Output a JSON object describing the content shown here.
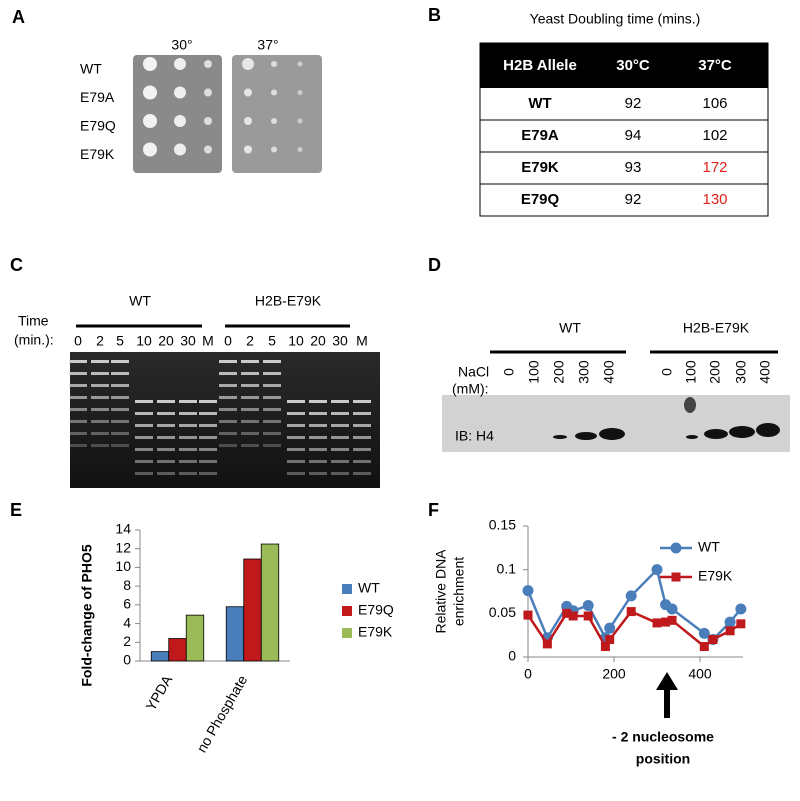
{
  "panels": {
    "A": {
      "label": "A",
      "temperatures": [
        "30°",
        "37°"
      ],
      "strains": [
        "WT",
        "E79A",
        "E79Q",
        "E79K"
      ]
    },
    "B": {
      "label": "B",
      "title": "Yeast Doubling time (mins.)",
      "header": [
        "H2B Allele",
        "30°C",
        "37°C"
      ],
      "rows": [
        [
          "WT",
          92,
          106
        ],
        [
          "E79A",
          94,
          102
        ],
        [
          "E79K",
          93,
          172
        ],
        [
          "E79Q",
          92,
          130
        ]
      ]
    },
    "C": {
      "label": "C",
      "time_label": [
        "Time",
        "(min.):"
      ],
      "groups": [
        "WT",
        "H2B-E79K"
      ],
      "lanes": [
        "0",
        "2",
        "5",
        "10",
        "20",
        "30",
        "M"
      ]
    },
    "D": {
      "label": "D",
      "groups": [
        "WT",
        "H2B-E79K"
      ],
      "salt_label": [
        "NaCl",
        "(mM):"
      ],
      "lanes": [
        "0",
        "100",
        "200",
        "300",
        "400"
      ],
      "blot_label": "IB: H4"
    },
    "E": {
      "label": "E"
    },
    "F": {
      "label": "F"
    }
  },
  "chart_data": [
    {
      "type": "bar",
      "y_label": "Fold-change of PHO5",
      "categories": [
        "YPDA",
        "no Phosphate"
      ],
      "series": [
        {
          "name": "WT",
          "color": "#4a7ebb",
          "values": [
            1,
            5.8
          ]
        },
        {
          "name": "E79Q",
          "color": "#c0191c",
          "values": [
            2.4,
            10.9
          ]
        },
        {
          "name": "E79K",
          "color": "#9bbb59",
          "values": [
            4.9,
            12.5
          ]
        }
      ],
      "ylim": [
        0,
        14
      ],
      "yticks": [
        0,
        2,
        4,
        6,
        8,
        10,
        12,
        14
      ],
      "legend": "right"
    },
    {
      "type": "line",
      "y_label": [
        "Relative DNA",
        "enrichment"
      ],
      "annotation": [
        "- 2 nucleosome",
        "position"
      ],
      "x": [
        0,
        45,
        90,
        105,
        140,
        180,
        190,
        240,
        300,
        320,
        335,
        410,
        430,
        470,
        495
      ],
      "series": [
        {
          "name": "WT",
          "color": "#4a7ebb",
          "marker": "circle",
          "values": [
            0.076,
            0.022,
            0.058,
            0.053,
            0.059,
            0.022,
            0.033,
            0.07,
            0.1,
            0.06,
            0.055,
            0.027,
            0.02,
            0.04,
            0.055
          ]
        },
        {
          "name": "E79K",
          "color": "#c0191c",
          "marker": "square",
          "values": [
            0.048,
            0.015,
            0.05,
            0.047,
            0.047,
            0.012,
            0.02,
            0.052,
            0.039,
            0.04,
            0.042,
            0.012,
            0.02,
            0.03,
            0.038
          ]
        }
      ],
      "xlim": [
        0,
        500
      ],
      "xticks": [
        0,
        200,
        400
      ],
      "ylim": [
        0,
        0.15
      ],
      "yticks": [
        0,
        0.05,
        0.1,
        0.15
      ],
      "legend": "upper right"
    }
  ]
}
